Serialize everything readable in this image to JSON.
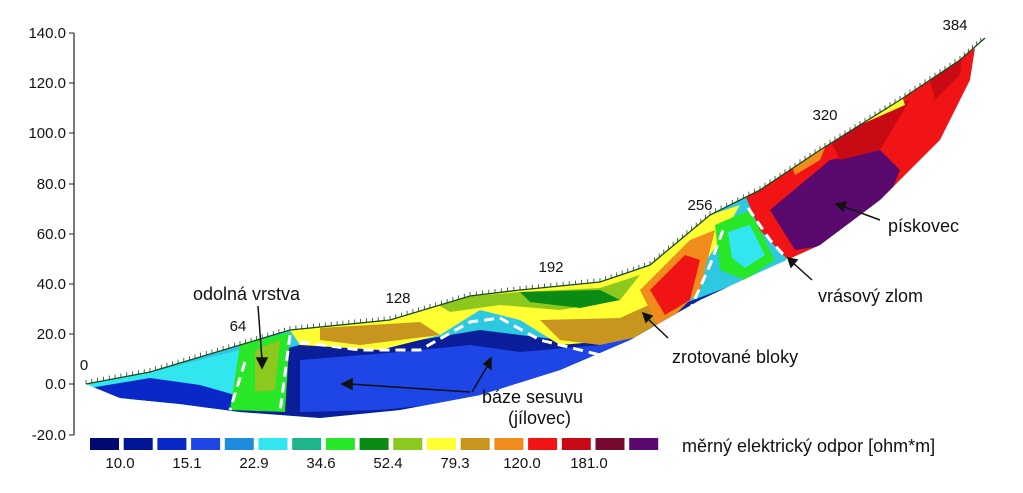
{
  "y_axis": {
    "ticks": [
      "140.0",
      "120.0",
      "100.0",
      "80.0",
      "60.0",
      "40.0",
      "20.0",
      "0.0",
      "-20.0"
    ]
  },
  "distance_labels": [
    "0",
    "64",
    "128",
    "192",
    "256",
    "320",
    "384"
  ],
  "annotations": {
    "resistant_layer": "odolná vrstva",
    "slide_base_line1": "báze sesuvu",
    "slide_base_line2": "(jílovec)",
    "rotated_blocks": "zrotované bloky",
    "sandstone": "pískovec",
    "fold_fault": "vrásový zlom"
  },
  "legend": {
    "title": "měrný elektrický odpor [ohm*m]",
    "colors": [
      "#000a6e",
      "#001496",
      "#0a28c8",
      "#1e46e6",
      "#1e8cdc",
      "#32e6f0",
      "#1eb48c",
      "#28e628",
      "#0a8c14",
      "#8cc81e",
      "#ffff32",
      "#c8961e",
      "#f08c1e",
      "#f01414",
      "#c80a14",
      "#780a32",
      "#5a0a6e"
    ],
    "labels": [
      "10.0",
      "15.1",
      "22.9",
      "34.6",
      "52.4",
      "79.3",
      "120.0",
      "181.0"
    ]
  },
  "colors": {
    "dark_blue": "#0a1e9a",
    "blue": "#1e46e6",
    "cyan": "#32e6f0",
    "green": "#28e628",
    "yellow": "#ffff32",
    "orange": "#f08c1e",
    "red": "#f01414",
    "purple": "#5a0a6e"
  }
}
